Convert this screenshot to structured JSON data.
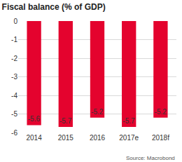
{
  "chart_data": {
    "type": "bar",
    "title": "Fiscal balance (% of GDP)",
    "source": "Source: Macrobond",
    "categories": [
      "2014",
      "2015",
      "2016",
      "2017e",
      "2018f"
    ],
    "values": [
      -5.6,
      -5.7,
      -5.2,
      -5.7,
      -5.2
    ],
    "color": "#e4032e",
    "ylim": [
      -6,
      0
    ],
    "yticks": [
      0,
      -1,
      -2,
      -3,
      -4,
      -5,
      -6
    ],
    "grid": true,
    "data_labels": true
  }
}
